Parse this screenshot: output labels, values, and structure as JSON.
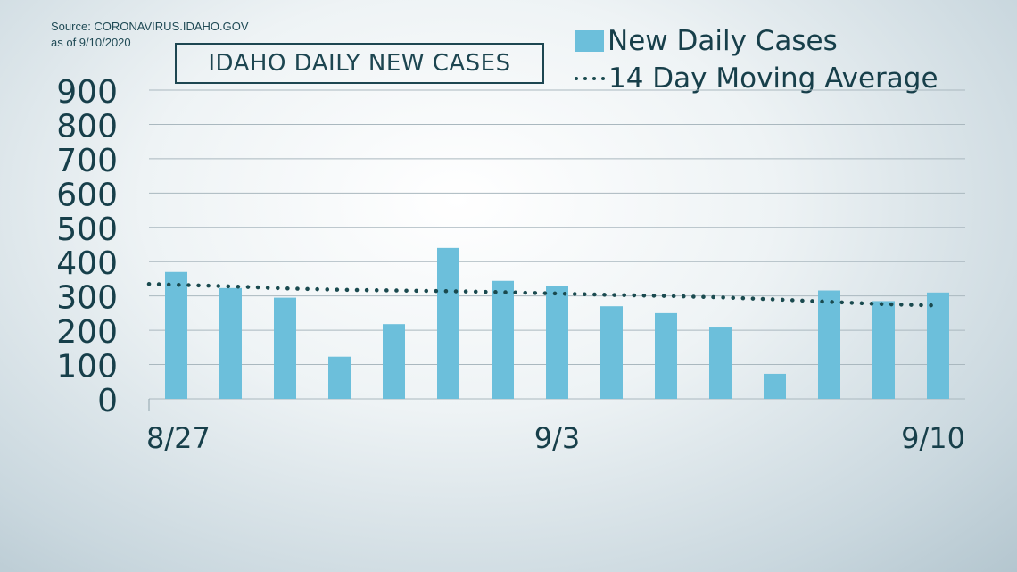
{
  "source": {
    "line1": "Source: CORONAVIRUS.IDAHO.GOV",
    "line2": "as of 9/10/2020"
  },
  "legend": {
    "bars": "New Daily Cases",
    "line": "14 Day Moving Average"
  },
  "colors": {
    "bar": "#6cbfdb",
    "line": "#1a4a4f",
    "text": "#173f4a"
  },
  "chart_data": {
    "type": "bar",
    "title": "IDAHO DAILY NEW CASES",
    "xlabel": "",
    "ylabel": "",
    "ylim": [
      0,
      900
    ],
    "yticks": [
      0,
      100,
      200,
      300,
      400,
      500,
      600,
      700,
      800,
      900
    ],
    "x_tick_labels": [
      {
        "index": 0,
        "label": "8/27"
      },
      {
        "index": 7,
        "label": "9/3"
      },
      {
        "index": 14,
        "label": "9/10"
      }
    ],
    "grid": true,
    "legend_position": "top-right",
    "series": [
      {
        "name": "New Daily Cases",
        "kind": "bar",
        "values": [
          370,
          323,
          295,
          123,
          218,
          440,
          344,
          330,
          270,
          250,
          208,
          73,
          316,
          285,
          310
        ]
      },
      {
        "name": "14 Day Moving Average",
        "kind": "dotted-line",
        "values": [
          335,
          328,
          322,
          318,
          316,
          314,
          311,
          307,
          303,
          300,
          296,
          290,
          283,
          276,
          272
        ]
      }
    ]
  }
}
